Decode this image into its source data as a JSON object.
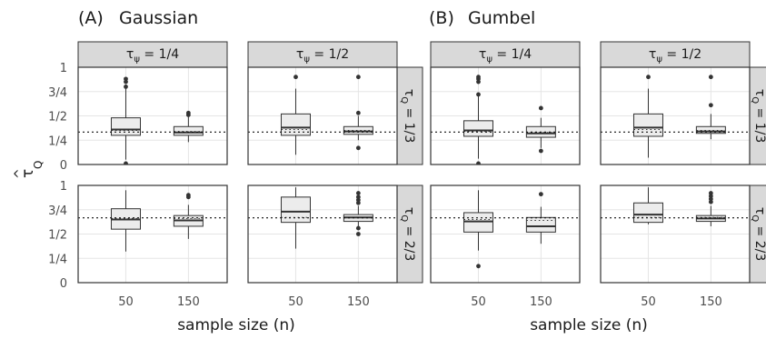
{
  "figure": {
    "panels": [
      {
        "label": "(A)",
        "title": "Gaussian"
      },
      {
        "label": "(B)",
        "title": "Gumbel"
      }
    ],
    "x_axis_title": "sample size (n)",
    "y_axis_title_symbol": "τ",
    "y_axis_title_hat": "^",
    "y_axis_title_subscript": "Q",
    "col_strips": [
      {
        "tau": "τ",
        "sub": "ψ",
        "eq": " = 1/4"
      },
      {
        "tau": "τ",
        "sub": "ψ",
        "eq": " = 1/2"
      },
      {
        "tau": "τ",
        "sub": "ψ",
        "eq": " = 1/4"
      },
      {
        "tau": "τ",
        "sub": "ψ",
        "eq": " = 1/2"
      }
    ],
    "row_strips": [
      {
        "tau": "τ",
        "sub": "Q",
        "eq": " = 1/3"
      },
      {
        "tau": "τ",
        "sub": "Q",
        "eq": " = 2/3"
      }
    ],
    "y_ticks": [
      {
        "v": 0,
        "label": "0"
      },
      {
        "v": 0.25,
        "label": "1/4"
      },
      {
        "v": 0.5,
        "label": "1/2"
      },
      {
        "v": 0.75,
        "label": "3/4"
      },
      {
        "v": 1,
        "label": "1"
      }
    ],
    "x_ticks": [
      "50",
      "150"
    ]
  },
  "chart_data": {
    "type": "box",
    "x_categories": [
      "50",
      "150"
    ],
    "ylim": [
      0,
      1
    ],
    "facets": [
      {
        "panel": "Gaussian",
        "tau_psi": "1/4",
        "tau_Q": "1/3",
        "reference": 0.3333,
        "boxes": [
          {
            "n": "50",
            "whisker_low": 0.05,
            "q1": 0.3,
            "median": 0.36,
            "q3": 0.48,
            "whisker_high": 0.78,
            "mean": 0.35,
            "outliers": [
              0.01,
              0.8,
              0.85,
              0.88
            ]
          },
          {
            "n": "150",
            "whisker_low": 0.23,
            "q1": 0.3,
            "median": 0.33,
            "q3": 0.39,
            "whisker_high": 0.49,
            "mean": 0.34,
            "outliers": [
              0.51,
              0.53
            ]
          }
        ]
      },
      {
        "panel": "Gaussian",
        "tau_psi": "1/2",
        "tau_Q": "1/3",
        "reference": 0.3333,
        "boxes": [
          {
            "n": "50",
            "whisker_low": 0.1,
            "q1": 0.3,
            "median": 0.38,
            "q3": 0.52,
            "whisker_high": 0.78,
            "mean": 0.36,
            "outliers": [
              0.9
            ]
          },
          {
            "n": "150",
            "whisker_low": 0.25,
            "q1": 0.31,
            "median": 0.34,
            "q3": 0.39,
            "whisker_high": 0.5,
            "mean": 0.35,
            "outliers": [
              0.17,
              0.53,
              0.9
            ]
          }
        ]
      },
      {
        "panel": "Gaussian",
        "tau_psi": "1/4",
        "tau_Q": "2/3",
        "reference": 0.6667,
        "boxes": [
          {
            "n": "50",
            "whisker_low": 0.32,
            "q1": 0.55,
            "median": 0.65,
            "q3": 0.76,
            "whisker_high": 0.95,
            "mean": 0.66,
            "outliers": []
          },
          {
            "n": "150",
            "whisker_low": 0.45,
            "q1": 0.58,
            "median": 0.64,
            "q3": 0.69,
            "whisker_high": 0.8,
            "mean": 0.66,
            "outliers": [
              0.88,
              0.9
            ]
          }
        ]
      },
      {
        "panel": "Gaussian",
        "tau_psi": "1/2",
        "tau_Q": "2/3",
        "reference": 0.6667,
        "boxes": [
          {
            "n": "50",
            "whisker_low": 0.35,
            "q1": 0.62,
            "median": 0.73,
            "q3": 0.88,
            "whisker_high": 0.98,
            "mean": 0.67,
            "outliers": []
          },
          {
            "n": "150",
            "whisker_low": 0.56,
            "q1": 0.63,
            "median": 0.67,
            "q3": 0.7,
            "whisker_high": 0.79,
            "mean": 0.67,
            "outliers": [
              0.5,
              0.56,
              0.82,
              0.85,
              0.88,
              0.92
            ]
          }
        ]
      },
      {
        "panel": "Gumbel",
        "tau_psi": "1/4",
        "tau_Q": "1/3",
        "reference": 0.3333,
        "boxes": [
          {
            "n": "50",
            "whisker_low": 0.06,
            "q1": 0.29,
            "median": 0.35,
            "q3": 0.45,
            "whisker_high": 0.72,
            "mean": 0.34,
            "outliers": [
              0.01,
              0.72,
              0.85,
              0.88,
              0.9
            ]
          },
          {
            "n": "150",
            "whisker_low": 0.17,
            "q1": 0.28,
            "median": 0.32,
            "q3": 0.39,
            "whisker_high": 0.48,
            "mean": 0.33,
            "outliers": [
              0.14,
              0.58
            ]
          }
        ]
      },
      {
        "panel": "Gumbel",
        "tau_psi": "1/2",
        "tau_Q": "1/3",
        "reference": 0.3333,
        "boxes": [
          {
            "n": "50",
            "whisker_low": 0.07,
            "q1": 0.29,
            "median": 0.38,
            "q3": 0.52,
            "whisker_high": 0.78,
            "mean": 0.36,
            "outliers": [
              0.9
            ]
          },
          {
            "n": "150",
            "whisker_low": 0.26,
            "q1": 0.32,
            "median": 0.34,
            "q3": 0.39,
            "whisker_high": 0.52,
            "mean": 0.35,
            "outliers": [
              0.61,
              0.9
            ]
          }
        ]
      },
      {
        "panel": "Gumbel",
        "tau_psi": "1/4",
        "tau_Q": "2/3",
        "reference": 0.6667,
        "boxes": [
          {
            "n": "50",
            "whisker_low": 0.33,
            "q1": 0.52,
            "median": 0.63,
            "q3": 0.72,
            "whisker_high": 0.95,
            "mean": 0.65,
            "outliers": [
              0.17
            ]
          },
          {
            "n": "150",
            "whisker_low": 0.4,
            "q1": 0.52,
            "median": 0.58,
            "q3": 0.67,
            "whisker_high": 0.78,
            "mean": 0.64,
            "outliers": [
              0.91
            ]
          }
        ]
      },
      {
        "panel": "Gumbel",
        "tau_psi": "1/2",
        "tau_Q": "2/3",
        "reference": 0.6667,
        "boxes": [
          {
            "n": "50",
            "whisker_low": 0.6,
            "q1": 0.62,
            "median": 0.7,
            "q3": 0.82,
            "whisker_high": 0.98,
            "mean": 0.67,
            "outliers": []
          },
          {
            "n": "150",
            "whisker_low": 0.58,
            "q1": 0.63,
            "median": 0.66,
            "q3": 0.69,
            "whisker_high": 0.79,
            "mean": 0.67,
            "outliers": [
              0.83,
              0.86,
              0.89,
              0.92
            ]
          }
        ]
      }
    ],
    "colors": {
      "box_fill": "#ececec",
      "strip_fill": "#d9d9d9",
      "grid": "#e5e5e5",
      "line": "#333333",
      "point": "#333333"
    }
  }
}
